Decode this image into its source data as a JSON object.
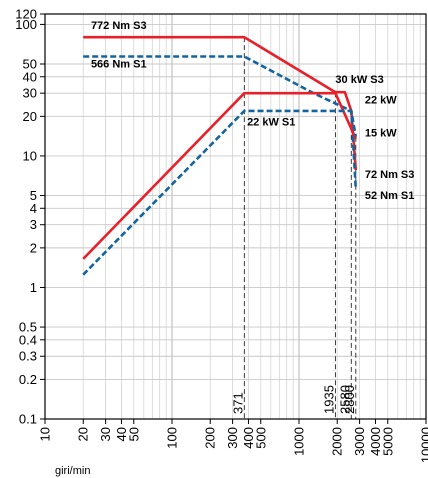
{
  "chart_data": {
    "type": "line",
    "title": "",
    "xlabel": "giri/min",
    "ylabel": "",
    "xscale": "log",
    "yscale": "log",
    "xlim": [
      10,
      10000
    ],
    "ylim": [
      0.1,
      120
    ],
    "grid": true,
    "x_ticks": [
      10,
      20,
      30,
      40,
      50,
      100,
      200,
      300,
      400,
      500,
      1000,
      2000,
      3000,
      4000,
      5000,
      10000
    ],
    "y_ticks": [
      0.1,
      0.2,
      0.3,
      0.4,
      0.5,
      1,
      2,
      3,
      4,
      5,
      10,
      20,
      30,
      40,
      50,
      100,
      120
    ],
    "series": [
      {
        "style": "solid",
        "color": "#e8202a",
        "points": [
          [
            20,
            80
          ],
          [
            371,
            80
          ],
          [
            1935,
            30.5
          ],
          [
            2300,
            30.5
          ],
          [
            2580,
            22
          ],
          [
            2800,
            7.8
          ]
        ]
      },
      {
        "style": "dashed",
        "color": "#1464a0",
        "points": [
          [
            20,
            57
          ],
          [
            371,
            57
          ],
          [
            1300,
            30
          ],
          [
            2580,
            22
          ],
          [
            2800,
            5.6
          ]
        ]
      },
      {
        "style": "solid",
        "color": "#e8202a",
        "points": [
          [
            20,
            1.65
          ],
          [
            371,
            30
          ],
          [
            1935,
            30
          ],
          [
            2800,
            13.5
          ]
        ]
      },
      {
        "style": "dashed",
        "color": "#1464a0",
        "points": [
          [
            20,
            1.25
          ],
          [
            371,
            22
          ],
          [
            2580,
            22
          ],
          [
            2800,
            14
          ]
        ]
      }
    ],
    "annotations": [
      {
        "text": "772 Nm S3",
        "x": 23,
        "y": 92
      },
      {
        "text": "566 Nm S1",
        "x": 23,
        "y": 47
      },
      {
        "text": "30 kW S3",
        "x": 1935,
        "y": 36
      },
      {
        "text": "22 kW",
        "x": 3300,
        "y": 25
      },
      {
        "text": "22 kW S1",
        "x": 390,
        "y": 17
      },
      {
        "text": "15 kW",
        "x": 3300,
        "y": 14
      },
      {
        "text": "72 Nm S3",
        "x": 3300,
        "y": 6.8
      },
      {
        "text": "52 Nm S1",
        "x": 3300,
        "y": 4.7
      }
    ],
    "markers": [
      {
        "x": 371,
        "label": "371"
      },
      {
        "x": 1935,
        "label": "1935"
      },
      {
        "x": 2580,
        "label": "2580"
      },
      {
        "x": 2800,
        "label": "2800"
      }
    ]
  }
}
